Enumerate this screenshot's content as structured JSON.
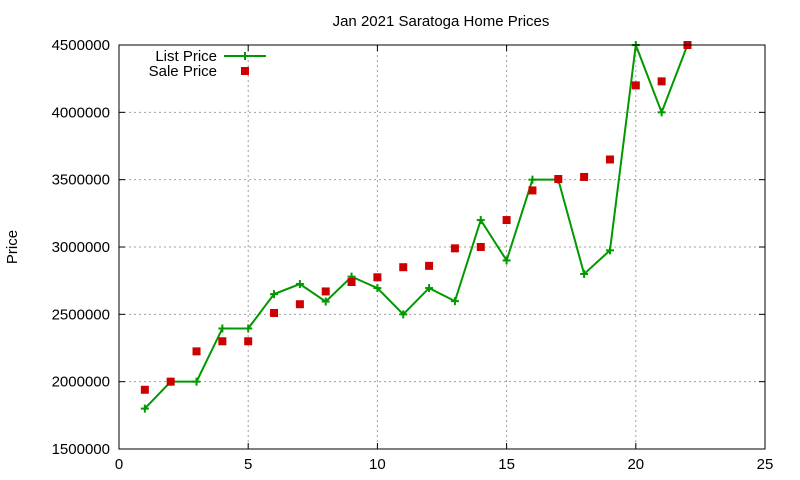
{
  "chart_data": {
    "type": "line",
    "title": "Jan 2021 Saratoga Home Prices",
    "xlabel": "",
    "ylabel": "Price",
    "xlim": [
      0,
      25
    ],
    "ylim": [
      1500000,
      4500000
    ],
    "x_ticks": [
      0,
      5,
      10,
      15,
      20,
      25
    ],
    "y_ticks": [
      1500000,
      2000000,
      2500000,
      3000000,
      3500000,
      4000000,
      4500000
    ],
    "grid": true,
    "legend_position": "top-left",
    "series": [
      {
        "name": "List Price",
        "style": "line-with-plus-markers",
        "color": "#009900",
        "x": [
          1,
          2,
          3,
          4,
          5,
          6,
          7,
          8,
          9,
          10,
          11,
          12,
          13,
          14,
          15,
          16,
          17,
          18,
          19,
          20,
          21,
          22
        ],
        "y": [
          1800000,
          2000000,
          2000000,
          2395000,
          2395000,
          2650000,
          2725000,
          2595000,
          2780000,
          2695000,
          2500000,
          2695000,
          2598000,
          3200000,
          2900000,
          3500000,
          3500000,
          2800000,
          2975000,
          4500000,
          4000000,
          4500000
        ]
      },
      {
        "name": "Sale Price",
        "style": "square-markers",
        "color": "#cc0000",
        "x": [
          1,
          2,
          3,
          4,
          5,
          6,
          7,
          8,
          9,
          10,
          11,
          12,
          13,
          14,
          15,
          16,
          17,
          18,
          19,
          20,
          21,
          22
        ],
        "y": [
          1940000,
          2000000,
          2225000,
          2300000,
          2300000,
          2510000,
          2575000,
          2670000,
          2740000,
          2775000,
          2850000,
          2860000,
          2990000,
          3000000,
          3200000,
          3420000,
          3505000,
          3520000,
          3650000,
          4200000,
          4230000,
          4500000
        ]
      }
    ]
  }
}
